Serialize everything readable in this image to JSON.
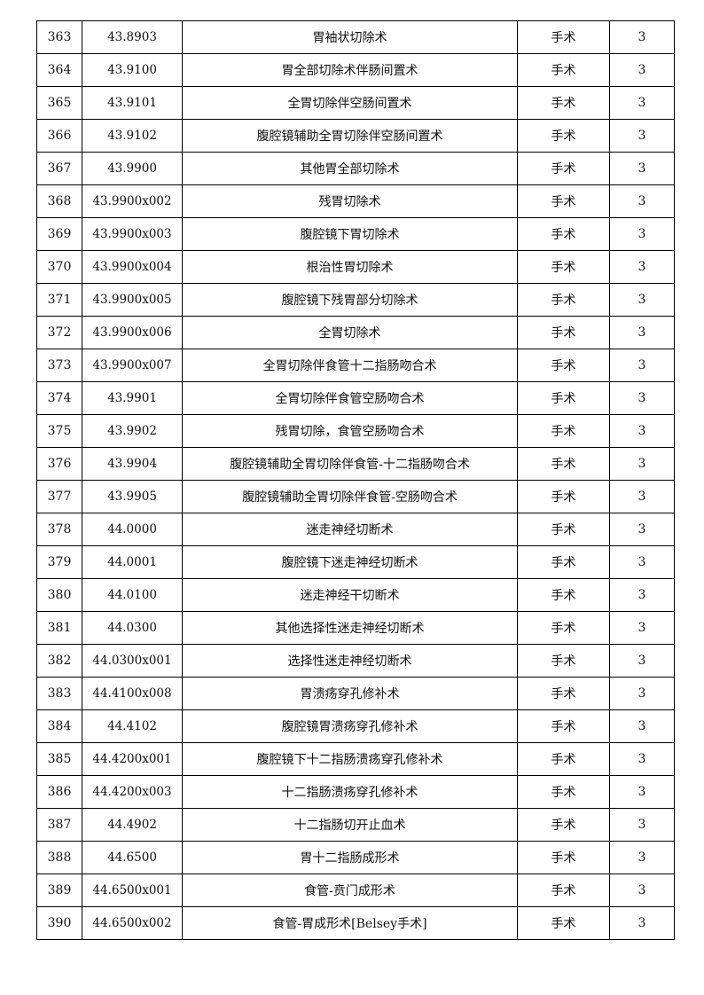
{
  "rows": [
    [
      "363",
      "43.8903",
      "胃袖状切除术",
      "手术",
      "3"
    ],
    [
      "364",
      "43.9100",
      "胃全部切除术伴肠间置术",
      "手术",
      "3"
    ],
    [
      "365",
      "43.9101",
      "全胃切除伴空肠间置术",
      "手术",
      "3"
    ],
    [
      "366",
      "43.9102",
      "腹腔镜辅助全胃切除伴空肠间置术",
      "手术",
      "3"
    ],
    [
      "367",
      "43.9900",
      "其他胃全部切除术",
      "手术",
      "3"
    ],
    [
      "368",
      "43.9900x002",
      "残胃切除术",
      "手术",
      "3"
    ],
    [
      "369",
      "43.9900x003",
      "腹腔镜下胃切除术",
      "手术",
      "3"
    ],
    [
      "370",
      "43.9900x004",
      "根治性胃切除术",
      "手术",
      "3"
    ],
    [
      "371",
      "43.9900x005",
      "腹腔镜下残胃部分切除术",
      "手术",
      "3"
    ],
    [
      "372",
      "43.9900x006",
      "全胃切除术",
      "手术",
      "3"
    ],
    [
      "373",
      "43.9900x007",
      "全胃切除伴食管十二指肠吻合术",
      "手术",
      "3"
    ],
    [
      "374",
      "43.9901",
      "全胃切除伴食管空肠吻合术",
      "手术",
      "3"
    ],
    [
      "375",
      "43.9902",
      "残胃切除，食管空肠吻合术",
      "手术",
      "3"
    ],
    [
      "376",
      "43.9904",
      "腹腔镜辅助全胃切除伴食管-十二指肠吻合术",
      "手术",
      "3"
    ],
    [
      "377",
      "43.9905",
      "腹腔镜辅助全胃切除伴食管-空肠吻合术",
      "手术",
      "3"
    ],
    [
      "378",
      "44.0000",
      "迷走神经切断术",
      "手术",
      "3"
    ],
    [
      "379",
      "44.0001",
      "腹腔镜下迷走神经切断术",
      "手术",
      "3"
    ],
    [
      "380",
      "44.0100",
      "迷走神经干切断术",
      "手术",
      "3"
    ],
    [
      "381",
      "44.0300",
      "其他选择性迷走神经切断术",
      "手术",
      "3"
    ],
    [
      "382",
      "44.0300x001",
      "选择性迷走神经切断术",
      "手术",
      "3"
    ],
    [
      "383",
      "44.4100x008",
      "胃溃疡穿孔修补术",
      "手术",
      "3"
    ],
    [
      "384",
      "44.4102",
      "腹腔镜胃溃疡穿孔修补术",
      "手术",
      "3"
    ],
    [
      "385",
      "44.4200x001",
      "腹腔镜下十二指肠溃疡穿孔修补术",
      "手术",
      "3"
    ],
    [
      "386",
      "44.4200x003",
      "十二指肠溃疡穿孔修补术",
      "手术",
      "3"
    ],
    [
      "387",
      "44.4902",
      "十二指肠切开止血术",
      "手术",
      "3"
    ],
    [
      "388",
      "44.6500",
      "胃十二指肠成形术",
      "手术",
      "3"
    ],
    [
      "389",
      "44.6500x001",
      "食管-贲门成形术",
      "手术",
      "3"
    ],
    [
      "390",
      "44.6500x002",
      "食管-胃成形术[Belsey手术]",
      "手术",
      "3"
    ]
  ]
}
